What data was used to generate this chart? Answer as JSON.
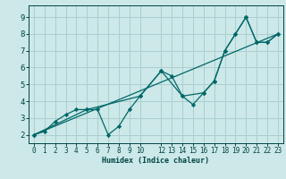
{
  "xlabel": "Humidex (Indice chaleur)",
  "bg_color": "#cce8e8",
  "line_color": "#006868",
  "grid_color": "#aacece",
  "xlim": [
    -0.5,
    23.5
  ],
  "ylim": [
    1.5,
    9.7
  ],
  "xticks": [
    0,
    1,
    2,
    3,
    4,
    5,
    6,
    7,
    8,
    9,
    10,
    12,
    13,
    14,
    15,
    16,
    17,
    18,
    19,
    20,
    21,
    22,
    23
  ],
  "yticks": [
    2,
    3,
    4,
    5,
    6,
    7,
    8,
    9
  ],
  "series1_x": [
    0,
    1,
    2,
    3,
    4,
    5,
    6,
    7,
    8,
    9,
    10,
    12,
    13,
    14,
    15,
    16,
    17,
    18,
    19,
    20,
    21,
    22,
    23
  ],
  "series1_y": [
    2.0,
    2.2,
    2.8,
    3.2,
    3.5,
    3.5,
    3.5,
    2.0,
    2.5,
    3.5,
    4.3,
    5.8,
    5.5,
    4.3,
    3.8,
    4.5,
    5.2,
    7.0,
    8.0,
    9.0,
    7.5,
    7.5,
    8.0
  ],
  "series2_x": [
    0,
    23
  ],
  "series2_y": [
    2.0,
    8.0
  ],
  "series3_x": [
    0,
    5,
    10,
    12,
    14,
    16,
    17,
    18,
    19,
    20,
    21,
    22,
    23
  ],
  "series3_y": [
    2.0,
    3.5,
    4.3,
    5.8,
    4.3,
    4.5,
    5.2,
    7.0,
    8.0,
    9.0,
    7.5,
    7.5,
    8.0
  ],
  "xlabel_fontsize": 6.0,
  "tick_fontsize": 5.5,
  "ytick_fontsize": 6.5
}
